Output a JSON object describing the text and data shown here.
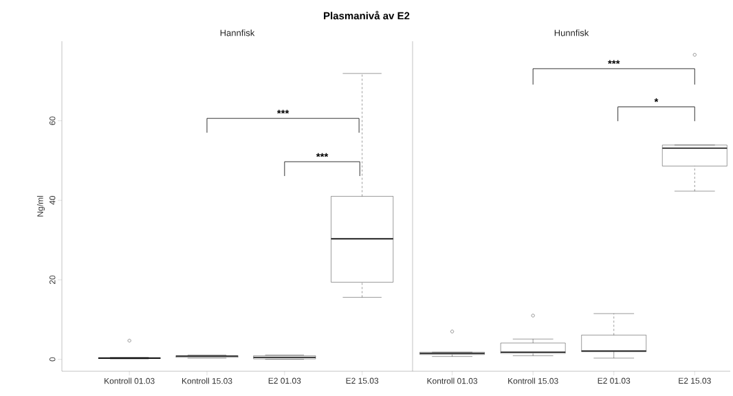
{
  "chart_data": [
    {
      "type": "box",
      "title": "Plasmanivå av E2",
      "subtitle": "Hannfisk",
      "ylabel": "Ng/ml",
      "categories": [
        "Kontroll 01.03",
        "Kontroll 15.03",
        "E2 01.03",
        "E2 15.03"
      ],
      "ylim": [
        -3,
        80
      ],
      "yticks": [
        0,
        20,
        40,
        60
      ],
      "series": [
        {
          "color": "#000000",
          "boxes": [
            {
              "low": 0.1,
              "q1": 0.2,
              "median": 0.3,
              "q3": 0.4,
              "high": 0.5,
              "outliers": [
                4.7
              ]
            },
            {
              "low": 0.3,
              "q1": 0.5,
              "median": 0.8,
              "q3": 0.9,
              "high": 1.1
            },
            {
              "low": 0,
              "q1": 0.1,
              "median": 0.5,
              "q3": 0.9,
              "high": 1.1
            },
            {
              "low": 15.6,
              "q1": 19.4,
              "median": 30.3,
              "q3": 41.0,
              "high": 71.9
            }
          ]
        }
      ],
      "annotations": [
        "***",
        "***"
      ]
    },
    {
      "type": "box",
      "subtitle": "Hunnfisk",
      "categories": [
        "Kontroll 01.03",
        "Kontroll 15.03",
        "E2 01.03",
        "E2 15.03"
      ],
      "ylim": [
        -3,
        80
      ],
      "tick_labels": "x",
      "series": [
        {
          "color": "#000000",
          "boxes": [
            {
              "low": 0.7,
              "q1": 1.2,
              "median": 1.5,
              "q3": 1.8,
              "high": 1.8,
              "outliers": [
                7.0
              ]
            },
            {
              "low": 0.9,
              "q1": 1.5,
              "median": 1.8,
              "q3": 4.1,
              "high": 5.1,
              "outliers": [
                11.0
              ]
            },
            {
              "low": 0.3,
              "q1": 1.9,
              "median": 2.1,
              "q3": 6.1,
              "high": 11.5
            },
            {
              "low": 42.3,
              "q1": 48.6,
              "median": 53.1,
              "q3": 53.9,
              "high": 53.9,
              "outliers": [
                76.6
              ]
            }
          ]
        }
      ],
      "annotations": [
        "***",
        "*"
      ]
    }
  ]
}
